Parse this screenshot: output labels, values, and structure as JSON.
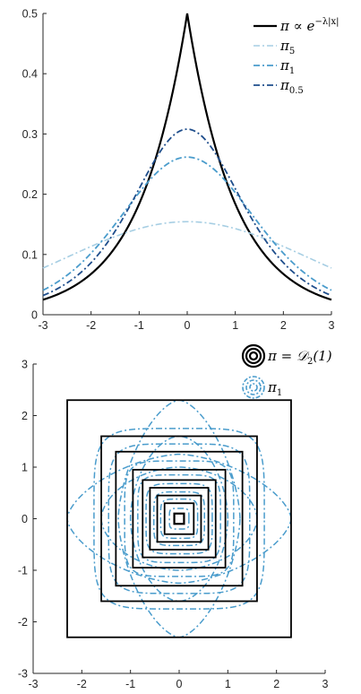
{
  "chart_data": [
    {
      "type": "line",
      "title": "",
      "xlabel": "",
      "ylabel": "",
      "xlim": [
        -3,
        3
      ],
      "ylim": [
        0,
        0.5
      ],
      "xticks": [
        "-3",
        "-2",
        "-1",
        "0",
        "1",
        "2",
        "3"
      ],
      "yticks": [
        "0",
        "0.1",
        "0.2",
        "0.3",
        "0.4",
        "0.5"
      ],
      "grid": false,
      "legend_position": "top-right",
      "series": [
        {
          "name": "π ∝ e^{−λ|x|}",
          "legend_main": "π ∝ e",
          "legend_sup": "−λ|x|",
          "legend_sub": "",
          "color": "#000000",
          "style": "solid",
          "width": 2.2,
          "kind": "laplace",
          "scale": 1
        },
        {
          "name": "π₅",
          "legend_main": "π",
          "legend_sup": "",
          "legend_sub": "5",
          "color": "#a6cee3",
          "style": "dashdot",
          "width": 1.6,
          "kind": "smoothed",
          "t": 5
        },
        {
          "name": "π₁",
          "legend_main": "π",
          "legend_sup": "",
          "legend_sub": "1",
          "color": "#4a9ccc",
          "style": "dashdot",
          "width": 1.8,
          "kind": "smoothed",
          "t": 1
        },
        {
          "name": "π₀.₅",
          "legend_main": "π",
          "legend_sup": "",
          "legend_sub": "0.5",
          "color": "#1f4e8c",
          "style": "dashdot",
          "width": 1.8,
          "kind": "smoothed",
          "t": 0.5
        }
      ]
    },
    {
      "type": "contour",
      "title": "",
      "xlabel": "",
      "ylabel": "",
      "xlim": [
        -3,
        3
      ],
      "ylim": [
        -3,
        3
      ],
      "xticks": [
        "-3",
        "-2",
        "-1",
        "0",
        "1",
        "2",
        "3"
      ],
      "yticks": [
        "-3",
        "-2",
        "-1",
        "0",
        "1",
        "2",
        "3"
      ],
      "grid": false,
      "legend_position": "top-right",
      "square_half_widths": [
        0.1,
        0.3,
        0.45,
        0.6,
        0.75,
        0.95,
        1.3,
        1.6,
        2.3
      ],
      "blue_outer_contours": {
        "bulge_x_half_width": 2.3,
        "bulge_y_half_height": 2.3,
        "inner_half_width": 1.75
      },
      "series": [
        {
          "name": "π = D₂(1)",
          "legend_main": "π = 𝒟",
          "legend_sub": "2",
          "legend_tail": "(1)",
          "color": "#000000",
          "style": "solid"
        },
        {
          "name": "π₁",
          "legend_main": "π",
          "legend_sub": "1",
          "legend_tail": "",
          "color": "#4a9ccc",
          "style": "dashdot"
        }
      ]
    }
  ]
}
